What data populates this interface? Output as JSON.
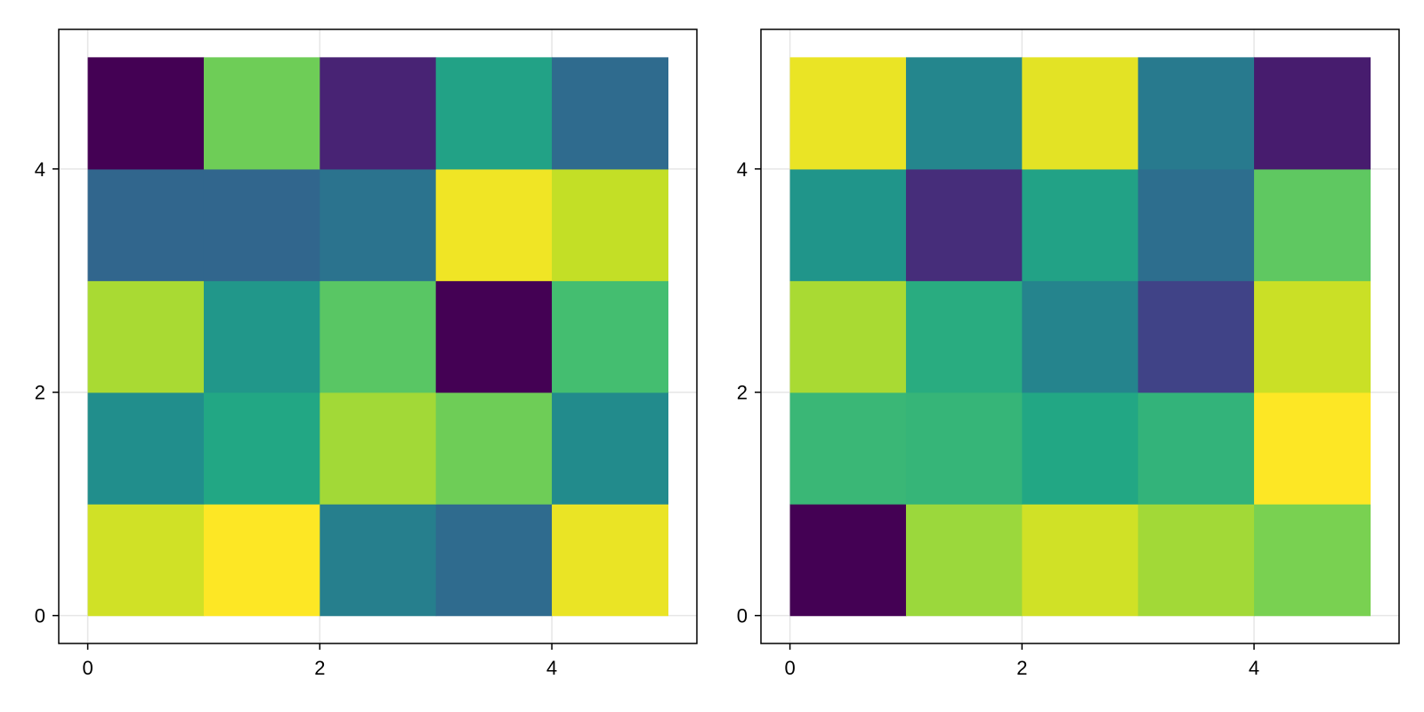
{
  "chart_data": [
    {
      "type": "heatmap",
      "x_edges": [
        0,
        1,
        2,
        3,
        4,
        5
      ],
      "y_edges": [
        0,
        1,
        2,
        3,
        4,
        5
      ],
      "xlim": [
        -0.25,
        5.25
      ],
      "ylim": [
        -0.25,
        5.25
      ],
      "x_ticks": [
        0,
        2,
        4
      ],
      "y_ticks": [
        0,
        2,
        4
      ],
      "x_tick_labels": [
        "0",
        "2",
        "4"
      ],
      "y_tick_labels": [
        "0",
        "2",
        "4"
      ],
      "grid": true,
      "colormap": "viridis",
      "value_range": [
        0,
        1
      ],
      "cells_rows_bottom_to_top": [
        [
          0.93,
          1.0,
          0.43,
          0.35,
          0.97
        ],
        [
          0.49,
          0.6,
          0.86,
          0.78,
          0.48
        ],
        [
          0.87,
          0.53,
          0.74,
          0.0,
          0.7
        ],
        [
          0.33,
          0.33,
          0.38,
          0.98,
          0.91
        ],
        [
          0.0,
          0.78,
          0.1,
          0.58,
          0.35
        ]
      ],
      "title": "",
      "xlabel": "",
      "ylabel": ""
    },
    {
      "type": "heatmap",
      "x_edges": [
        0,
        1,
        2,
        3,
        4,
        5
      ],
      "y_edges": [
        0,
        1,
        2,
        3,
        4,
        5
      ],
      "xlim": [
        -0.25,
        5.25
      ],
      "ylim": [
        -0.25,
        5.25
      ],
      "x_ticks": [
        0,
        2,
        4
      ],
      "y_ticks": [
        0,
        2,
        4
      ],
      "x_tick_labels": [
        "0",
        "2",
        "4"
      ],
      "y_tick_labels": [
        "0",
        "2",
        "4"
      ],
      "grid": true,
      "colormap": "viridis",
      "value_range": [
        0,
        1
      ],
      "cells_rows_bottom_to_top": [
        [
          0.0,
          0.85,
          0.93,
          0.86,
          0.8
        ],
        [
          0.67,
          0.66,
          0.6,
          0.65,
          1.0
        ],
        [
          0.87,
          0.62,
          0.45,
          0.2,
          0.92
        ],
        [
          0.52,
          0.13,
          0.58,
          0.36,
          0.75
        ],
        [
          0.97,
          0.46,
          0.96,
          0.41,
          0.08
        ]
      ],
      "title": "",
      "xlabel": "",
      "ylabel": ""
    }
  ]
}
